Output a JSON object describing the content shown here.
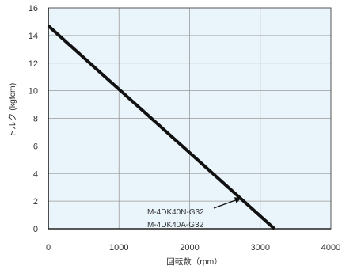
{
  "chart_data": {
    "type": "line",
    "title": "",
    "xlabel": "回転数（rpm）",
    "ylabel": "トルク (kgfcm)",
    "xlim": [
      0,
      4000
    ],
    "ylim": [
      0,
      16
    ],
    "x_ticks": [
      "0",
      "1000",
      "2000",
      "3000",
      "4000"
    ],
    "y_ticks": [
      "0",
      "2",
      "4",
      "6",
      "8",
      "10",
      "12",
      "14",
      "16"
    ],
    "grid": true,
    "series": [
      {
        "x": [
          0,
          3200
        ],
        "y": [
          14.7,
          0
        ]
      }
    ],
    "annotations": [
      {
        "lines": [
          "M-4DK40N-G32",
          "M-4DK40A-G32"
        ],
        "arrow_to": {
          "x": 2720,
          "y": 2.2
        }
      }
    ],
    "colors": {
      "plot_background": "#eaf4fb",
      "grid": "#9a9a9a",
      "line": "#111111",
      "text": "#333333"
    }
  }
}
